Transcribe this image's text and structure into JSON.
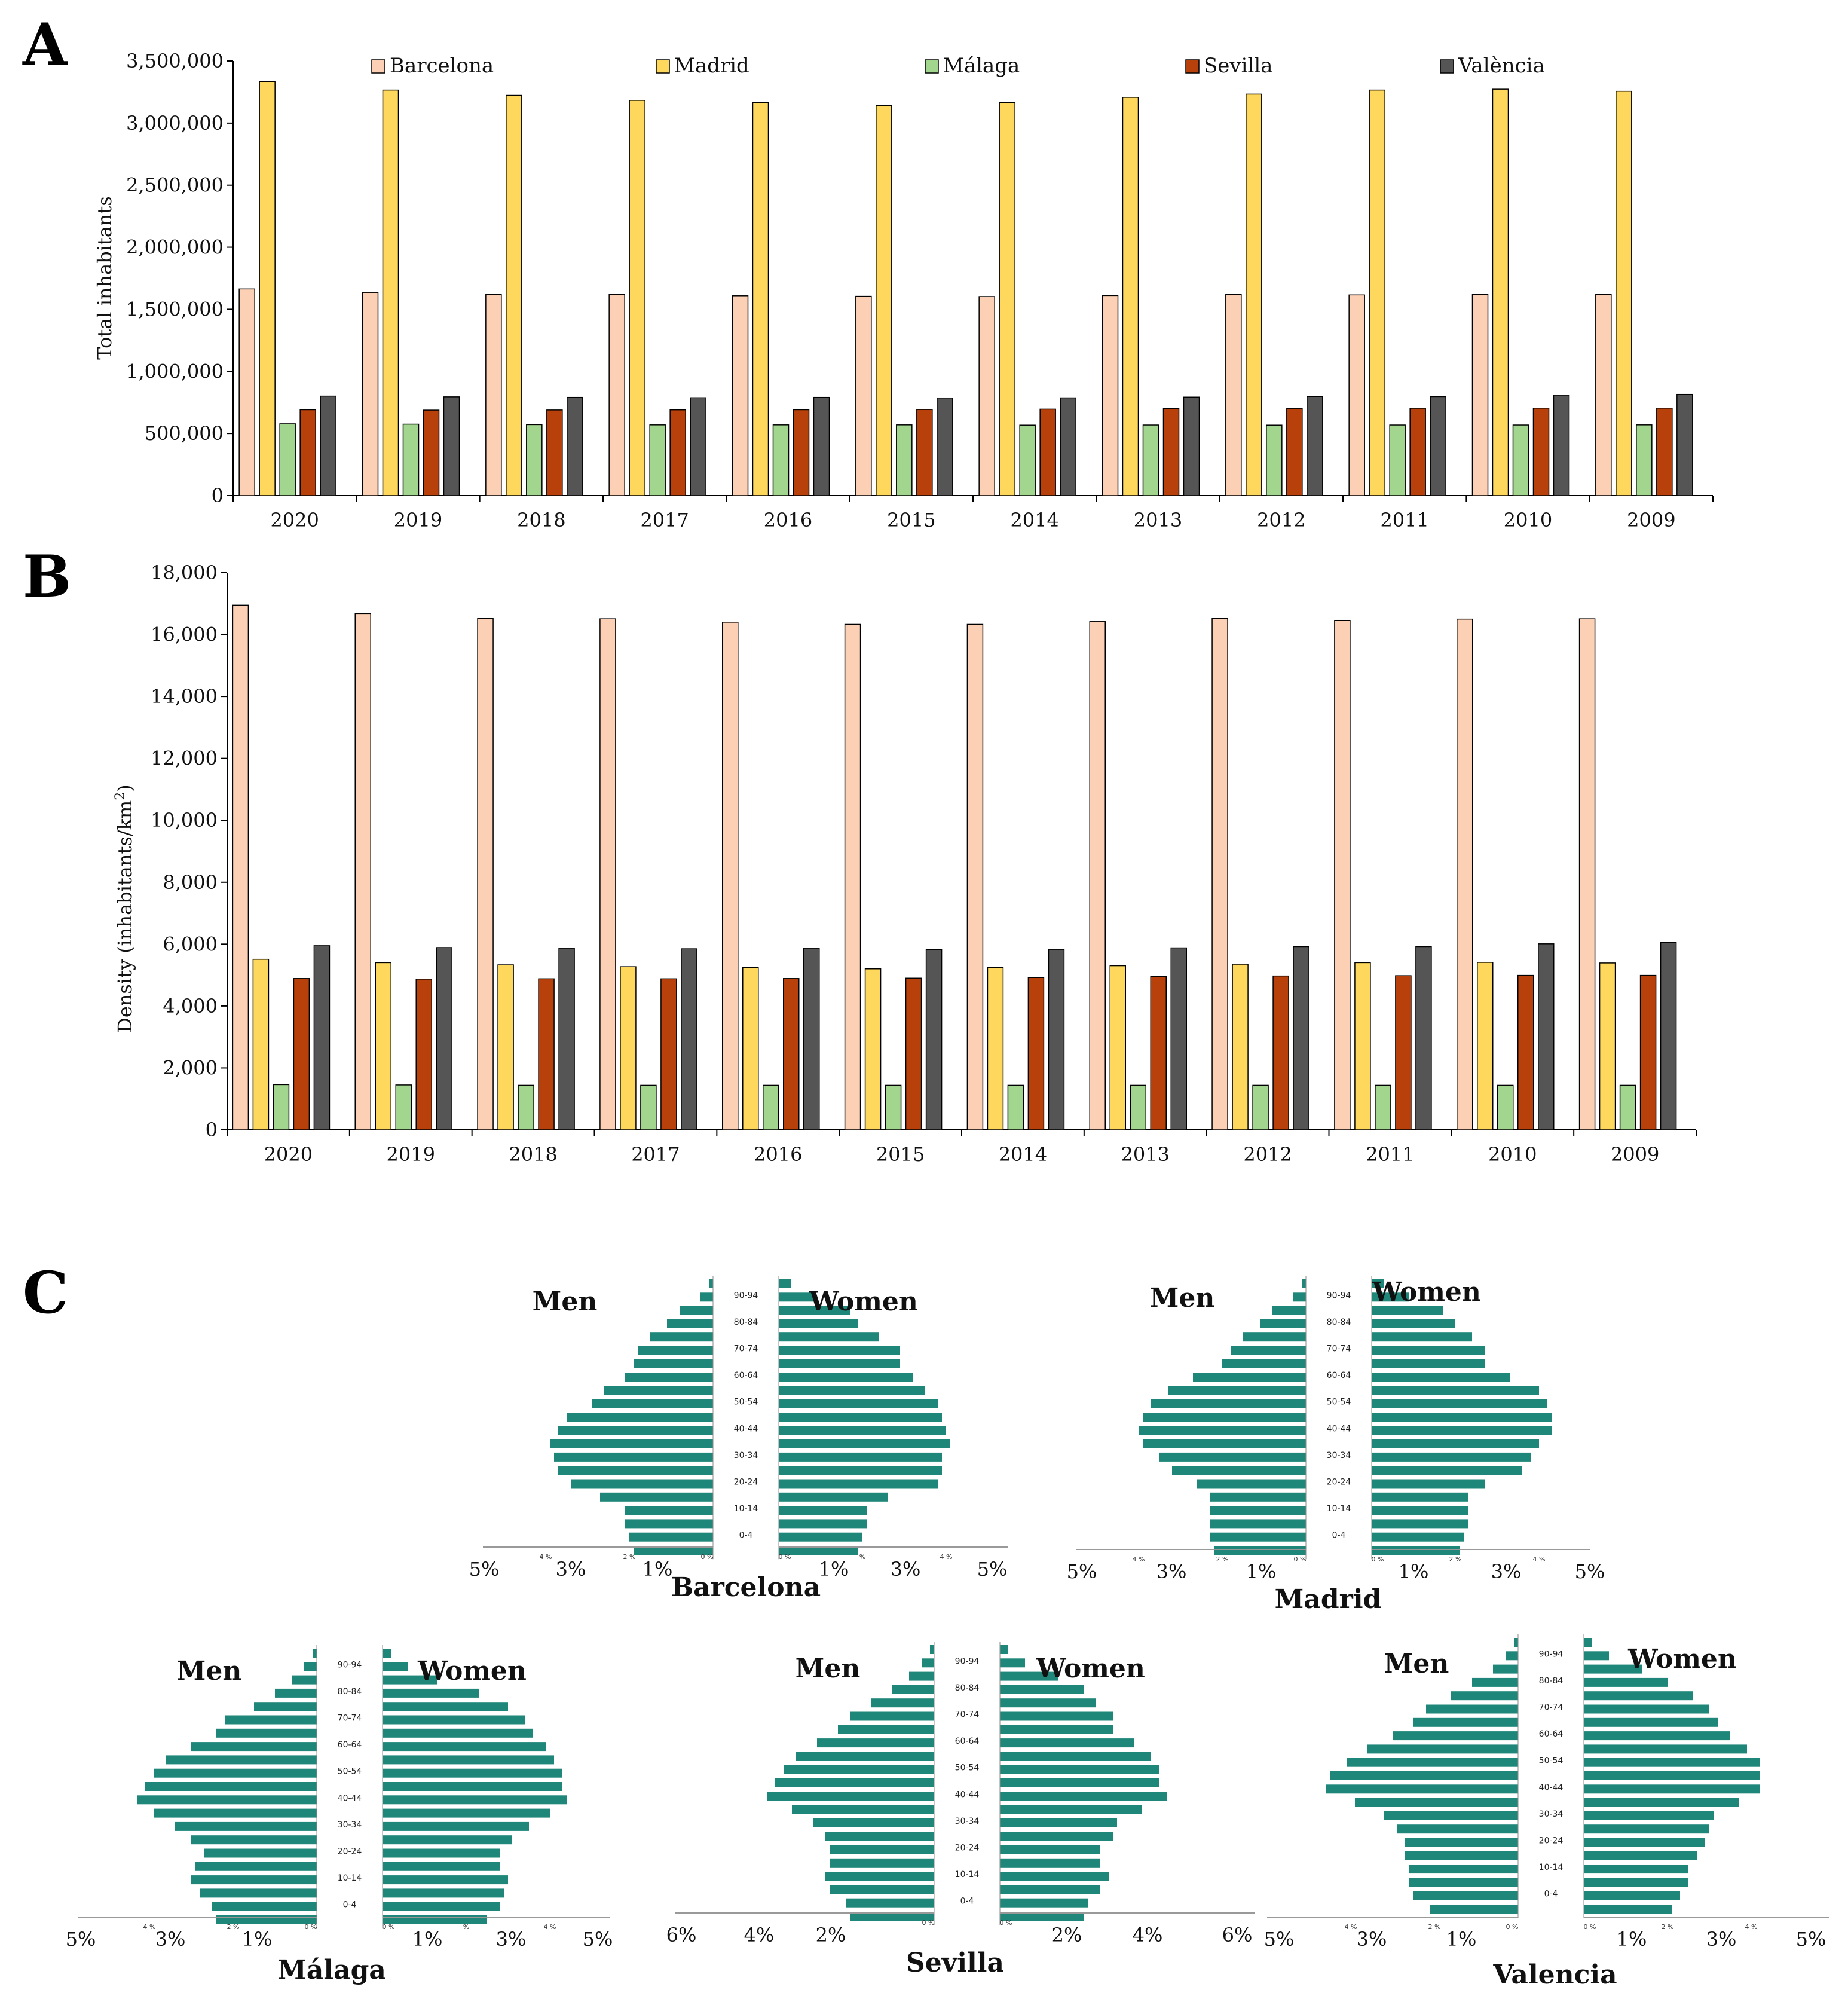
{
  "panels": {
    "a": "A",
    "b": "B",
    "c": "C"
  },
  "colors": {
    "Barcelona": "#fcd0b4",
    "Madrid": "#fdd85d",
    "Málaga": "#a2d58e",
    "Sevilla": "#b8410b",
    "València": "#555555",
    "pyramid": "#1e877a"
  },
  "chart_data": [
    {
      "id": "A",
      "type": "bar",
      "ylabel": "Total inhabitants",
      "ylim": [
        0,
        3500000
      ],
      "yticks": [
        0,
        500000,
        1000000,
        1500000,
        2000000,
        2500000,
        3000000,
        3500000
      ],
      "ytick_labels": [
        "0",
        "500,000",
        "1,000,000",
        "1,500,000",
        "2,000,000",
        "2,500,000",
        "3,000,000",
        "3,500,000"
      ],
      "legend_position": "top",
      "categories": [
        "2020",
        "2019",
        "2018",
        "2017",
        "2016",
        "2015",
        "2014",
        "2013",
        "2012",
        "2011",
        "2010",
        "2009"
      ],
      "series": [
        {
          "name": "Barcelona",
          "values": [
            1664000,
            1636000,
            1620000,
            1620000,
            1609000,
            1605000,
            1603000,
            1611000,
            1620000,
            1616000,
            1619000,
            1621000
          ]
        },
        {
          "name": "Madrid",
          "values": [
            3334000,
            3266000,
            3223000,
            3183000,
            3166000,
            3142000,
            3166000,
            3207000,
            3233000,
            3266000,
            3273000,
            3256000
          ]
        },
        {
          "name": "Málaga",
          "values": [
            578000,
            575000,
            571000,
            569000,
            569000,
            569000,
            567000,
            568000,
            567000,
            568000,
            568000,
            569000
          ]
        },
        {
          "name": "Sevilla",
          "values": [
            691000,
            688000,
            689000,
            690000,
            691000,
            693000,
            696000,
            700000,
            702000,
            703000,
            704000,
            704000
          ]
        },
        {
          "name": "València",
          "values": [
            801000,
            795000,
            791000,
            788000,
            791000,
            786000,
            787000,
            793000,
            798000,
            797000,
            809000,
            815000
          ]
        }
      ]
    },
    {
      "id": "B",
      "type": "bar",
      "ylabel": "Density (inhabitants/km",
      "ylabel_sup": "2",
      "ylabel_end": ")",
      "ylim": [
        0,
        18000
      ],
      "yticks": [
        0,
        2000,
        4000,
        6000,
        8000,
        10000,
        12000,
        14000,
        16000,
        18000
      ],
      "ytick_labels": [
        "0",
        "2,000",
        "4,000",
        "6,000",
        "8,000",
        "10,000",
        "12,000",
        "14,000",
        "16,000",
        "18,000"
      ],
      "categories": [
        "2020",
        "2019",
        "2018",
        "2017",
        "2016",
        "2015",
        "2014",
        "2013",
        "2012",
        "2011",
        "2010",
        "2009"
      ],
      "series": [
        {
          "name": "Barcelona",
          "values": [
            16950,
            16680,
            16520,
            16510,
            16400,
            16330,
            16330,
            16420,
            16520,
            16460,
            16500,
            16510
          ]
        },
        {
          "name": "Madrid",
          "values": [
            5510,
            5400,
            5330,
            5270,
            5240,
            5200,
            5240,
            5300,
            5350,
            5400,
            5410,
            5390
          ]
        },
        {
          "name": "Málaga",
          "values": [
            1460,
            1450,
            1440,
            1440,
            1440,
            1440,
            1440,
            1440,
            1440,
            1440,
            1440,
            1440
          ]
        },
        {
          "name": "Sevilla",
          "values": [
            4890,
            4870,
            4880,
            4880,
            4890,
            4900,
            4920,
            4950,
            4970,
            4980,
            4990,
            4990
          ]
        },
        {
          "name": "València",
          "values": [
            5950,
            5890,
            5870,
            5850,
            5870,
            5820,
            5830,
            5880,
            5920,
            5920,
            6010,
            6060
          ]
        }
      ]
    }
  ],
  "pyramids": {
    "side_labels": {
      "men": "Men",
      "women": "Women"
    },
    "age_labels": [
      "90-94",
      "80-84",
      "70-74",
      "60-64",
      "50-54",
      "40-44",
      "30-34",
      "20-24",
      "10-14",
      "0-4"
    ],
    "items": [
      {
        "city": "Barcelona",
        "axis_ticks": [
          "5%",
          "3%",
          "1%",
          "1%",
          "3%",
          "5%"
        ],
        "small_ticks": [
          "4 %",
          "2 %",
          "0 %",
          "0 %",
          "%",
          "4 %"
        ],
        "men": [
          0.1,
          0.3,
          0.8,
          1.1,
          1.5,
          1.8,
          1.9,
          2.1,
          2.6,
          2.9,
          3.5,
          3.7,
          3.9,
          3.8,
          3.7,
          3.4,
          2.7,
          2.1,
          2.1,
          2.0,
          1.9
        ],
        "women": [
          0.3,
          0.9,
          1.7,
          1.9,
          2.4,
          2.9,
          2.9,
          3.2,
          3.5,
          3.8,
          3.9,
          4.0,
          4.1,
          3.9,
          3.9,
          3.8,
          2.6,
          2.1,
          2.1,
          2.0,
          1.9
        ]
      },
      {
        "city": "Madrid",
        "axis_ticks": [
          "5%",
          "3%",
          "1%",
          "1%",
          "3%",
          "5%"
        ],
        "small_ticks": [
          "4 %",
          "2 %",
          "0 %",
          "0 %",
          "2 %",
          "4 %"
        ],
        "men": [
          0.1,
          0.3,
          0.8,
          1.1,
          1.5,
          1.8,
          2.0,
          2.7,
          3.3,
          3.7,
          3.9,
          4.0,
          3.9,
          3.5,
          3.2,
          2.6,
          2.3,
          2.3,
          2.3,
          2.3,
          2.2
        ],
        "women": [
          0.3,
          0.9,
          1.7,
          2.0,
          2.4,
          2.7,
          2.7,
          3.3,
          4.0,
          4.2,
          4.3,
          4.3,
          4.0,
          3.8,
          3.6,
          2.7,
          2.3,
          2.3,
          2.3,
          2.2,
          2.1
        ]
      },
      {
        "city": "Málaga",
        "axis_ticks": [
          "5%",
          "3%",
          "1%",
          "1%",
          "3%",
          "5%"
        ],
        "small_ticks": [
          "4 %",
          "2 %",
          "0 %",
          "0 %",
          "%",
          "4 %"
        ],
        "men": [
          0.1,
          0.3,
          0.6,
          1.0,
          1.5,
          2.2,
          2.4,
          3.0,
          3.6,
          3.9,
          4.1,
          4.3,
          3.9,
          3.4,
          3.0,
          2.7,
          2.9,
          3.0,
          2.8,
          2.5,
          2.4
        ],
        "women": [
          0.2,
          0.6,
          1.3,
          2.3,
          3.0,
          3.4,
          3.6,
          3.9,
          4.1,
          4.3,
          4.3,
          4.4,
          4.0,
          3.5,
          3.1,
          2.8,
          2.8,
          3.0,
          2.9,
          2.8,
          2.5
        ]
      },
      {
        "city": "Sevilla",
        "axis_ticks": [
          "6%",
          "4%",
          "2%",
          "2%",
          "4%",
          "6%"
        ],
        "small_ticks": [
          "0 %",
          "0 %"
        ],
        "men": [
          0.1,
          0.3,
          0.6,
          1.0,
          1.5,
          2.0,
          2.3,
          2.8,
          3.3,
          3.6,
          3.8,
          4.0,
          3.4,
          2.9,
          2.6,
          2.5,
          2.5,
          2.6,
          2.5,
          2.1,
          2.0
        ],
        "women": [
          0.2,
          0.6,
          1.4,
          2.0,
          2.3,
          2.7,
          2.7,
          3.2,
          3.6,
          3.8,
          3.8,
          4.0,
          3.4,
          2.8,
          2.7,
          2.4,
          2.4,
          2.6,
          2.4,
          2.1,
          2.0
        ]
      },
      {
        "city": "Valencia",
        "axis_ticks": [
          "5%",
          "3%",
          "1%",
          "1%",
          "3%",
          "5%"
        ],
        "small_ticks": [
          "4 %",
          "2 %",
          "0 %",
          "0 %",
          "2 %",
          "4 %"
        ],
        "men": [
          0.1,
          0.3,
          0.6,
          1.1,
          1.6,
          2.2,
          2.5,
          3.0,
          3.6,
          4.1,
          4.5,
          4.6,
          3.9,
          3.2,
          2.9,
          2.7,
          2.7,
          2.6,
          2.6,
          2.5,
          2.1
        ],
        "women": [
          0.2,
          0.6,
          1.4,
          2.0,
          2.6,
          3.0,
          3.2,
          3.5,
          3.9,
          4.2,
          4.2,
          4.2,
          3.7,
          3.1,
          3.0,
          2.9,
          2.7,
          2.5,
          2.5,
          2.3,
          2.1
        ]
      }
    ]
  }
}
